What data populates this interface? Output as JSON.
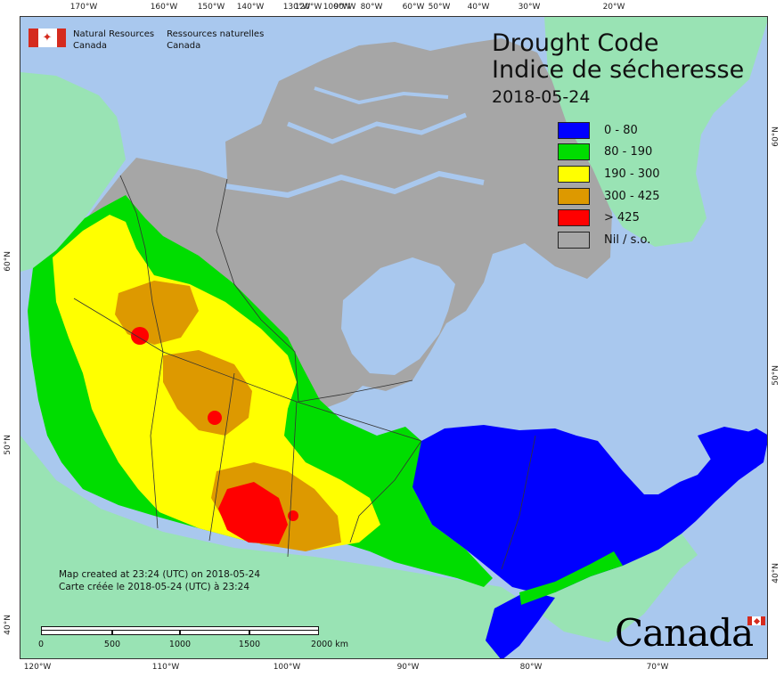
{
  "title": {
    "english": "Drought Code",
    "french": "Indice de sécheresse",
    "date": "2018-05-24"
  },
  "legend": [
    {
      "label": "0 - 80",
      "color": "#0000ff"
    },
    {
      "label": "80 - 190",
      "color": "#00dd00"
    },
    {
      "label": "190 - 300",
      "color": "#ffff00"
    },
    {
      "label": "300 - 425",
      "color": "#dd9900"
    },
    {
      "label": "> 425",
      "color": "#ff0000"
    },
    {
      "label": "Nil / s.o.",
      "color": "#a6a6a6"
    }
  ],
  "agency": {
    "english": [
      "Natural Resources",
      "Canada"
    ],
    "french": [
      "Ressources naturelles",
      "Canada"
    ]
  },
  "credits": {
    "english": "Map created at 23:24 (UTC) on 2018-05-24",
    "french": "Carte créée le 2018-05-24 (UTC) à 23:24"
  },
  "scalebar": {
    "labels": [
      "0",
      "500",
      "1000",
      "1500",
      "2000  km"
    ]
  },
  "wordmark": "Canada",
  "graticule": {
    "top": [
      "170°W",
      "160°W",
      "150°W",
      "140°W",
      "130°W",
      "120°W",
      "100°W",
      "90°W",
      "80°W",
      "60°W",
      "50°W",
      "40°W",
      "30°W",
      "20°W"
    ],
    "bottom": [
      "120°W",
      "110°W",
      "100°W",
      "90°W",
      "80°W",
      "70°W"
    ],
    "left": [
      "60°N",
      "50°N",
      "40°N"
    ],
    "right": [
      "60°N",
      "50°N",
      "40°N"
    ]
  },
  "colors": {
    "ocean": "#a9c8ee",
    "foreign_land": "#99e3b4",
    "no_data": "#a6a6a6",
    "boundary": "#333333"
  }
}
